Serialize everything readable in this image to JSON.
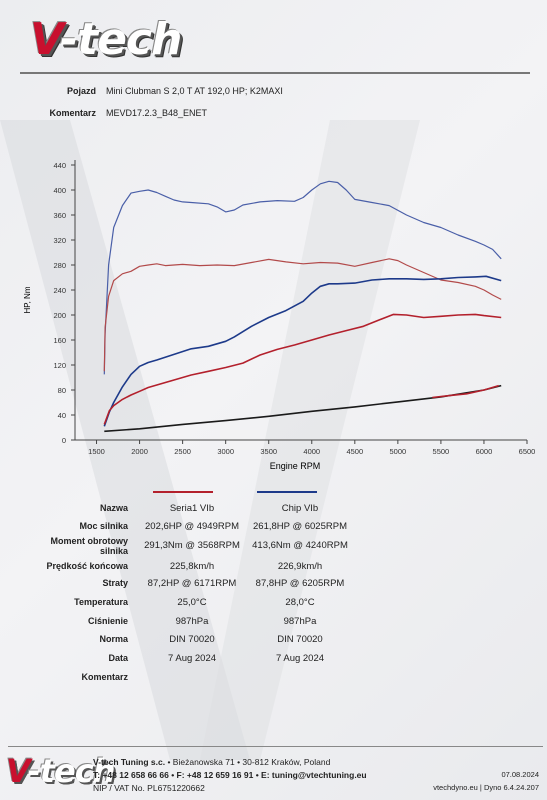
{
  "brand": {
    "logo_v": "V",
    "logo_rest": "-tech"
  },
  "header": {
    "vehicle_label": "Pojazd",
    "vehicle_value": "Mini Clubman S 2,0 T AT 192,0 HP; K2MAXI",
    "comment_label": "Komentarz",
    "comment_value": "MEVD17.2.3_B48_ENET"
  },
  "chart_data": {
    "type": "line",
    "xlabel": "Engine RPM",
    "ylabel": "HP, Nm",
    "xlim": [
      1250,
      6500
    ],
    "ylim": [
      0,
      440
    ],
    "xticks": [
      1500,
      2000,
      2500,
      3000,
      3500,
      4000,
      4500,
      5000,
      5500,
      6000,
      6500
    ],
    "yticks": [
      0,
      40,
      80,
      120,
      160,
      200,
      240,
      280,
      320,
      360,
      400,
      440
    ],
    "grid": false,
    "series": [
      {
        "name": "Chip VIb torque",
        "color": "#4a5fa8",
        "x": [
          1590,
          1600,
          1640,
          1700,
          1800,
          1900,
          2000,
          2100,
          2200,
          2300,
          2400,
          2500,
          2600,
          2800,
          2900,
          3000,
          3100,
          3200,
          3400,
          3600,
          3800,
          3900,
          4000,
          4100,
          4200,
          4300,
          4400,
          4500,
          4700,
          4900,
          5100,
          5300,
          5500,
          5700,
          5900,
          6000,
          6100,
          6200
        ],
        "y": [
          105,
          170,
          280,
          340,
          375,
          395,
          398,
          400,
          396,
          390,
          384,
          381,
          380,
          378,
          373,
          365,
          368,
          376,
          381,
          383,
          382,
          388,
          400,
          410,
          414,
          412,
          400,
          385,
          380,
          375,
          360,
          348,
          340,
          328,
          318,
          312,
          305,
          290
        ]
      },
      {
        "name": "Seria1 VIb torque",
        "color": "#b24a4a",
        "x": [
          1590,
          1600,
          1640,
          1700,
          1800,
          1900,
          2000,
          2100,
          2200,
          2300,
          2500,
          2700,
          2900,
          3100,
          3300,
          3500,
          3700,
          3900,
          4100,
          4300,
          4500,
          4700,
          4900,
          5000,
          5100,
          5300,
          5500,
          5700,
          5900,
          6000,
          6100,
          6200
        ],
        "y": [
          110,
          180,
          230,
          255,
          266,
          270,
          278,
          280,
          282,
          279,
          281,
          279,
          280,
          279,
          284,
          289,
          285,
          282,
          284,
          283,
          278,
          284,
          290,
          287,
          280,
          268,
          256,
          252,
          246,
          240,
          232,
          225
        ]
      },
      {
        "name": "Chip VIb",
        "color": "#1d3a8a",
        "x": [
          1590,
          1650,
          1700,
          1800,
          1900,
          2000,
          2100,
          2200,
          2400,
          2600,
          2800,
          3000,
          3100,
          3300,
          3500,
          3700,
          3900,
          4000,
          4100,
          4200,
          4300,
          4500,
          4700,
          4900,
          5100,
          5300,
          5500,
          5700,
          5900,
          6025,
          6200
        ],
        "y": [
          22,
          45,
          60,
          85,
          105,
          118,
          124,
          128,
          137,
          146,
          150,
          158,
          165,
          182,
          196,
          207,
          222,
          235,
          246,
          250,
          250,
          251,
          256,
          258,
          258,
          257,
          258,
          260,
          261,
          262,
          255
        ]
      },
      {
        "name": "Seria1 VIb",
        "color": "#b3202c",
        "x": [
          1590,
          1650,
          1700,
          1800,
          1900,
          2000,
          2100,
          2200,
          2400,
          2600,
          2800,
          3000,
          3200,
          3400,
          3600,
          3800,
          4000,
          4200,
          4400,
          4600,
          4800,
          4949,
          5100,
          5300,
          5500,
          5700,
          5900,
          6000,
          6200
        ],
        "y": [
          25,
          47,
          55,
          65,
          72,
          78,
          84,
          88,
          96,
          104,
          110,
          116,
          123,
          136,
          145,
          152,
          160,
          168,
          175,
          182,
          193,
          201,
          200,
          196,
          198,
          200,
          201,
          199,
          196
        ]
      },
      {
        "name": "Chip VIb loss",
        "color": "#1a1a1a",
        "x": [
          1590,
          2000,
          2500,
          3000,
          3500,
          4000,
          4500,
          5000,
          5500,
          6000,
          6200
        ],
        "y": [
          14,
          18,
          25,
          31,
          38,
          46,
          53,
          61,
          69,
          80,
          87
        ]
      },
      {
        "name": "Seria1 VIb loss",
        "color": "#b3202c",
        "x": [
          5400,
          5600,
          5800,
          6000,
          6171
        ],
        "y": [
          68,
          71,
          74,
          80,
          87
        ]
      }
    ]
  },
  "summary": {
    "name_label": "Nazwa",
    "col1": "Seria1 VIb",
    "col2": "Chip VIb",
    "col1_color": "#b3202c",
    "col2_color": "#1d3a8a",
    "rows": [
      {
        "label": "Moc silnika",
        "v1": "202,6HP @ 4949RPM",
        "v2": "261,8HP @ 6025RPM"
      },
      {
        "label": "Moment obrotowy silnika",
        "v1": "291,3Nm @ 3568RPM",
        "v2": "413,6Nm @ 4240RPM"
      },
      {
        "label": "Prędkość końcowa",
        "v1": "225,8km/h",
        "v2": "226,9km/h"
      },
      {
        "label": "Straty",
        "v1": "87,2HP @ 6171RPM",
        "v2": "87,8HP @ 6205RPM"
      },
      {
        "label": "Temperatura",
        "v1": "25,0°C",
        "v2": "28,0°C"
      },
      {
        "label": "Ciśnienie",
        "v1": "987hPa",
        "v2": "987hPa"
      },
      {
        "label": "Norma",
        "v1": "DIN 70020",
        "v2": "DIN 70020"
      },
      {
        "label": "Data",
        "v1": "7 Aug 2024",
        "v2": "7 Aug 2024"
      },
      {
        "label": "Komentarz",
        "v1": "",
        "v2": ""
      }
    ]
  },
  "footer": {
    "company": "V-tech Tuning s.c.",
    "address": " • Bieżanowska 71 • 30-812 Kraków, Poland",
    "contact": "T: +48 12 658 66 66 • F: +48 12 659 16 91 • E: tuning@vtechtuning.eu",
    "nip": "NIP / VAT No. PL6751220662",
    "date": "07.08.2024",
    "site": "vtechdyno.eu | Dyno 6.4.24.207"
  }
}
